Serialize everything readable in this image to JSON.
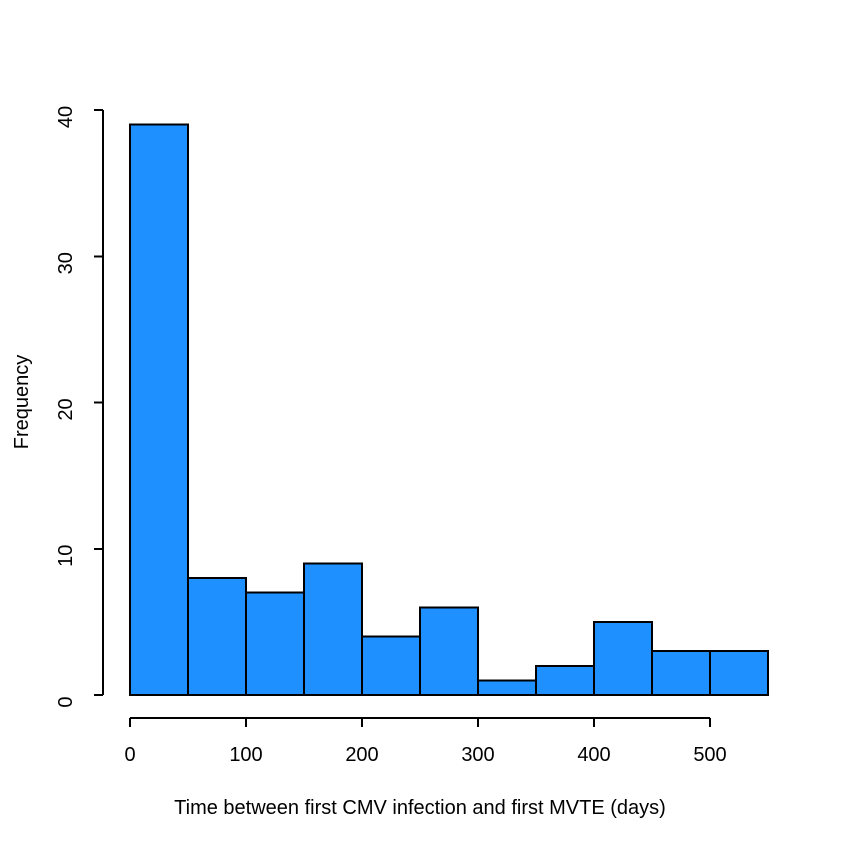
{
  "page": {
    "background_color": "#FFFFFF",
    "title": ""
  },
  "chart_data": {
    "type": "bar",
    "subtype": "histogram",
    "title": "",
    "xlabel": "Time between first CMV infection and first MVTE (days)",
    "ylabel": "Frequency",
    "bin_width": 50,
    "bin_edges": [
      0,
      50,
      100,
      150,
      200,
      250,
      300,
      350,
      400,
      450,
      500,
      550
    ],
    "categories": [
      "0-50",
      "50-100",
      "100-150",
      "150-200",
      "200-250",
      "250-300",
      "300-350",
      "350-400",
      "400-450",
      "450-500",
      "500-550"
    ],
    "values": [
      39,
      8,
      7,
      9,
      4,
      6,
      1,
      2,
      5,
      3,
      3
    ],
    "x_ticks": [
      0,
      100,
      200,
      300,
      400,
      500
    ],
    "y_ticks": [
      0,
      10,
      20,
      30,
      40
    ],
    "xlim": [
      0,
      550
    ],
    "ylim": [
      0,
      40
    ],
    "grid": "off",
    "legend": "none",
    "bar_fill_color": "#1E90FF",
    "bar_stroke_color": "#000000",
    "axis_color": "#000000",
    "text_color": "#000000"
  }
}
